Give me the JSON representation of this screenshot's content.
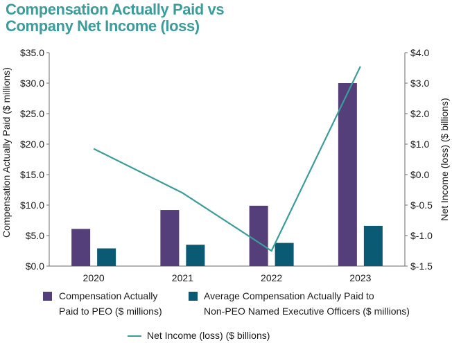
{
  "title_lines": [
    "Compensation Actually Paid vs",
    "Company Net Income (loss)"
  ],
  "colors": {
    "title": "#3b9c9c",
    "peo_bar": "#543f7b",
    "neo_bar": "#0b5a73",
    "net_income_line": "#3a9d9b",
    "axis": "#6b6b6b"
  },
  "chart_data": {
    "type": "bar+line",
    "title": "Compensation Actually Paid vs Company Net Income (loss)",
    "categories": [
      "2020",
      "2021",
      "2022",
      "2023"
    ],
    "series": [
      {
        "name": "Compensation Actually Paid to PEO ($ millions)",
        "type": "bar",
        "axis": "left",
        "values": [
          6.1,
          9.2,
          9.9,
          30.0
        ]
      },
      {
        "name": "Average Compensation Actually Paid to Non-PEO Named Executive Officers ($ millions)",
        "type": "bar",
        "axis": "left",
        "values": [
          2.9,
          3.5,
          3.8,
          6.6
        ]
      },
      {
        "name": "Net Income (loss) ($ billions)",
        "type": "line",
        "axis": "right",
        "values": [
          0.85,
          -0.3,
          -1.25,
          3.55
        ]
      }
    ],
    "left_axis": {
      "label": "Compensation Actually Paid ($ millions)",
      "range": [
        0,
        35
      ],
      "ticks": [
        0,
        5,
        10,
        15,
        20,
        25,
        30,
        35
      ],
      "tick_labels": [
        "$0.0",
        "$5.0",
        "$10.0",
        "$15.0",
        "$20.0",
        "$25.0",
        "$30.0",
        "$35.0"
      ]
    },
    "right_axis": {
      "label": "Net Income (loss) ($ billions)",
      "range": [
        -1.5,
        4.0
      ],
      "ticks": [
        -1.5,
        -1.0,
        -0.5,
        0.0,
        1.0,
        2.0,
        3.0,
        4.0
      ],
      "tick_labels": [
        "$-1.5",
        "$-1.0",
        "$-0.5",
        "$0.0",
        "$1.0",
        "$2.0",
        "$3.0",
        "$4.0"
      ]
    },
    "grid": false,
    "legend_position": "bottom"
  },
  "legend": {
    "peo_line1": "Compensation Actually",
    "peo_line2": "Paid to PEO ($ millions)",
    "neo_line1": "Average Compensation Actually Paid to",
    "neo_line2": "Non-PEO Named Executive Officers ($ millions)",
    "net_income": "Net Income (loss) ($ billions)"
  }
}
